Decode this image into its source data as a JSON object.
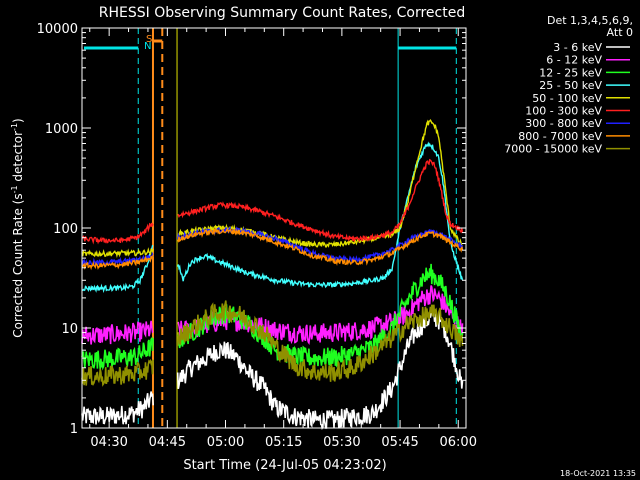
{
  "chart_data": {
    "type": "line",
    "title": "RHESSI Observing Summary Count Rates, Corrected",
    "xlabel": "Start Time (24-Jul-05 04:23:02)",
    "ylabel_main": "Corrected Count Rate (s",
    "ylabel_sup1": "-1",
    "ylabel_mid": " detector",
    "ylabel_sup2": "-1",
    "ylabel_end": ")",
    "yscale": "log",
    "ylim": [
      1,
      10000
    ],
    "xlim_minutes": [
      0,
      99
    ],
    "x_ticks": [
      {
        "label": "04:30",
        "min": 7
      },
      {
        "label": "04:45",
        "min": 22
      },
      {
        "label": "05:00",
        "min": 37
      },
      {
        "label": "05:15",
        "min": 52
      },
      {
        "label": "05:30",
        "min": 67
      },
      {
        "label": "05:45",
        "min": 82
      },
      {
        "label": "06:00",
        "min": 97
      }
    ],
    "y_ticks": [
      {
        "label": "1",
        "v": 1
      },
      {
        "label": "10",
        "v": 10
      },
      {
        "label": "100",
        "v": 100
      },
      {
        "label": "1000",
        "v": 1000
      },
      {
        "label": "10000",
        "v": 10000
      }
    ],
    "legend": {
      "placement": "right",
      "header1": "Det 1,3,4,5,6,9,",
      "header2": "Att 0"
    },
    "gaps": [
      [
        18.5,
        24.5
      ]
    ],
    "series": [
      {
        "name": "3 - 6 keV",
        "color": "#ffffff",
        "points": [
          [
            0,
            1.3
          ],
          [
            6,
            1.3
          ],
          [
            10,
            1.35
          ],
          [
            13,
            1.4
          ],
          [
            16,
            1.6
          ],
          [
            18,
            2.0
          ],
          [
            25,
            3.0
          ],
          [
            28,
            4.0
          ],
          [
            32,
            5.0
          ],
          [
            35,
            6.0
          ],
          [
            37,
            6.0
          ],
          [
            40,
            5.0
          ],
          [
            43,
            3.5
          ],
          [
            47,
            2.5
          ],
          [
            50,
            1.6
          ],
          [
            55,
            1.3
          ],
          [
            60,
            1.2
          ],
          [
            65,
            1.2
          ],
          [
            70,
            1.3
          ],
          [
            75,
            1.4
          ],
          [
            80,
            2.5
          ],
          [
            82,
            4
          ],
          [
            84,
            6.5
          ],
          [
            86,
            9
          ],
          [
            88,
            11
          ],
          [
            90,
            13
          ],
          [
            92,
            12
          ],
          [
            94,
            9
          ],
          [
            96,
            5
          ],
          [
            98,
            2.5
          ]
        ]
      },
      {
        "name": "6 - 12 keV",
        "color": "#ff20ff",
        "points": [
          [
            0,
            8.5
          ],
          [
            6,
            8.5
          ],
          [
            10,
            8.8
          ],
          [
            14,
            9.0
          ],
          [
            18,
            9.6
          ],
          [
            25,
            9.4
          ],
          [
            30,
            10
          ],
          [
            35,
            11.5
          ],
          [
            38,
            12
          ],
          [
            42,
            11.5
          ],
          [
            46,
            10.5
          ],
          [
            50,
            9.5
          ],
          [
            55,
            9.0
          ],
          [
            60,
            8.8
          ],
          [
            65,
            9.0
          ],
          [
            70,
            9.3
          ],
          [
            75,
            10
          ],
          [
            80,
            11.5
          ],
          [
            84,
            14
          ],
          [
            86,
            17
          ],
          [
            88,
            20
          ],
          [
            90,
            22
          ],
          [
            92,
            20
          ],
          [
            94,
            16
          ],
          [
            96,
            12
          ],
          [
            98,
            9.5
          ]
        ]
      },
      {
        "name": "12 - 25 keV",
        "color": "#20ff20",
        "points": [
          [
            0,
            4.8
          ],
          [
            6,
            4.9
          ],
          [
            10,
            5.0
          ],
          [
            14,
            5.2
          ],
          [
            18,
            6.5
          ],
          [
            25,
            7.5
          ],
          [
            30,
            10
          ],
          [
            34,
            13
          ],
          [
            37,
            14
          ],
          [
            40,
            13
          ],
          [
            43,
            11
          ],
          [
            47,
            8
          ],
          [
            50,
            6
          ],
          [
            55,
            5.2
          ],
          [
            60,
            5.0
          ],
          [
            65,
            5.1
          ],
          [
            70,
            5.5
          ],
          [
            75,
            6.5
          ],
          [
            80,
            10
          ],
          [
            82,
            14
          ],
          [
            84,
            19
          ],
          [
            86,
            25
          ],
          [
            88,
            32
          ],
          [
            90,
            35
          ],
          [
            92,
            30
          ],
          [
            94,
            22
          ],
          [
            96,
            14
          ],
          [
            98,
            8
          ]
        ]
      },
      {
        "name": "25 - 50 keV",
        "color": "#40ffff",
        "points": [
          [
            0,
            25
          ],
          [
            5,
            25
          ],
          [
            10,
            25
          ],
          [
            13,
            26
          ],
          [
            15,
            30
          ],
          [
            17,
            45
          ],
          [
            18,
            65
          ],
          [
            25,
            42
          ],
          [
            26,
            30
          ],
          [
            28,
            45
          ],
          [
            30,
            50
          ],
          [
            32,
            52
          ],
          [
            34,
            48
          ],
          [
            38,
            42
          ],
          [
            42,
            36
          ],
          [
            46,
            33
          ],
          [
            50,
            30
          ],
          [
            55,
            28
          ],
          [
            60,
            27
          ],
          [
            65,
            27
          ],
          [
            70,
            28
          ],
          [
            75,
            30
          ],
          [
            78,
            32
          ],
          [
            80,
            40
          ],
          [
            82,
            100
          ],
          [
            84,
            200
          ],
          [
            86,
            400
          ],
          [
            88,
            600
          ],
          [
            89,
            700
          ],
          [
            90,
            680
          ],
          [
            91,
            600
          ],
          [
            92,
            500
          ],
          [
            93,
            300
          ],
          [
            94,
            150
          ],
          [
            95,
            70
          ],
          [
            97,
            40
          ],
          [
            98,
            30
          ]
        ]
      },
      {
        "name": "50 - 100 keV",
        "color": "#e0e000",
        "points": [
          [
            0,
            55
          ],
          [
            5,
            55
          ],
          [
            10,
            56
          ],
          [
            14,
            56
          ],
          [
            18,
            58
          ],
          [
            25,
            88
          ],
          [
            30,
            95
          ],
          [
            35,
            100
          ],
          [
            40,
            98
          ],
          [
            45,
            90
          ],
          [
            50,
            80
          ],
          [
            55,
            72
          ],
          [
            60,
            68
          ],
          [
            65,
            68
          ],
          [
            70,
            72
          ],
          [
            75,
            78
          ],
          [
            80,
            85
          ],
          [
            82,
            100
          ],
          [
            84,
            180
          ],
          [
            86,
            400
          ],
          [
            88,
            800
          ],
          [
            89,
            1100
          ],
          [
            90,
            1150
          ],
          [
            91,
            1050
          ],
          [
            92,
            800
          ],
          [
            93,
            400
          ],
          [
            94,
            200
          ],
          [
            95,
            100
          ],
          [
            97,
            75
          ],
          [
            98,
            68
          ]
        ]
      },
      {
        "name": "100 - 300 keV",
        "color": "#ff2020",
        "points": [
          [
            0,
            78
          ],
          [
            5,
            75
          ],
          [
            10,
            75
          ],
          [
            14,
            80
          ],
          [
            16,
            90
          ],
          [
            18,
            110
          ],
          [
            25,
            135
          ],
          [
            30,
            150
          ],
          [
            34,
            165
          ],
          [
            36,
            170
          ],
          [
            40,
            165
          ],
          [
            45,
            150
          ],
          [
            50,
            130
          ],
          [
            55,
            110
          ],
          [
            60,
            95
          ],
          [
            65,
            82
          ],
          [
            70,
            78
          ],
          [
            75,
            80
          ],
          [
            80,
            90
          ],
          [
            82,
            110
          ],
          [
            84,
            160
          ],
          [
            86,
            250
          ],
          [
            88,
            380
          ],
          [
            89,
            450
          ],
          [
            90,
            460
          ],
          [
            91,
            420
          ],
          [
            92,
            300
          ],
          [
            93,
            200
          ],
          [
            94,
            130
          ],
          [
            95,
            110
          ],
          [
            97,
            100
          ],
          [
            98,
            95
          ]
        ]
      },
      {
        "name": "300 - 800 keV",
        "color": "#2020ff",
        "points": [
          [
            0,
            45
          ],
          [
            5,
            45
          ],
          [
            10,
            46
          ],
          [
            14,
            48
          ],
          [
            18,
            52
          ],
          [
            25,
            82
          ],
          [
            30,
            90
          ],
          [
            35,
            95
          ],
          [
            40,
            95
          ],
          [
            45,
            88
          ],
          [
            50,
            78
          ],
          [
            55,
            66
          ],
          [
            60,
            55
          ],
          [
            65,
            50
          ],
          [
            70,
            48
          ],
          [
            75,
            52
          ],
          [
            80,
            60
          ],
          [
            84,
            75
          ],
          [
            88,
            88
          ],
          [
            90,
            92
          ],
          [
            92,
            88
          ],
          [
            94,
            80
          ],
          [
            96,
            72
          ],
          [
            98,
            65
          ]
        ]
      },
      {
        "name": "800 - 7000 keV",
        "color": "#ff8c00",
        "points": [
          [
            0,
            42
          ],
          [
            5,
            42
          ],
          [
            10,
            43
          ],
          [
            14,
            45
          ],
          [
            18,
            50
          ],
          [
            25,
            78
          ],
          [
            30,
            88
          ],
          [
            35,
            93
          ],
          [
            40,
            92
          ],
          [
            45,
            84
          ],
          [
            50,
            72
          ],
          [
            55,
            62
          ],
          [
            60,
            52
          ],
          [
            65,
            47
          ],
          [
            70,
            45
          ],
          [
            75,
            48
          ],
          [
            80,
            56
          ],
          [
            84,
            70
          ],
          [
            88,
            85
          ],
          [
            90,
            88
          ],
          [
            92,
            84
          ],
          [
            94,
            76
          ],
          [
            96,
            68
          ],
          [
            98,
            62
          ]
        ]
      },
      {
        "name": "7000 - 15000 keV",
        "color": "#909000",
        "points": [
          [
            0,
            3.3
          ],
          [
            6,
            3.3
          ],
          [
            10,
            3.4
          ],
          [
            14,
            3.5
          ],
          [
            18,
            4.0
          ],
          [
            25,
            8
          ],
          [
            30,
            11
          ],
          [
            34,
            14
          ],
          [
            37,
            15
          ],
          [
            40,
            14
          ],
          [
            43,
            12
          ],
          [
            47,
            9
          ],
          [
            50,
            6.5
          ],
          [
            55,
            4.2
          ],
          [
            60,
            3.6
          ],
          [
            65,
            3.6
          ],
          [
            70,
            4.0
          ],
          [
            75,
            5.5
          ],
          [
            80,
            8
          ],
          [
            84,
            11
          ],
          [
            88,
            13
          ],
          [
            90,
            14
          ],
          [
            92,
            13
          ],
          [
            94,
            11
          ],
          [
            96,
            9
          ],
          [
            98,
            7
          ]
        ]
      }
    ],
    "overlays": {
      "night_label": "N",
      "saa_label": "S",
      "night_color": "#00e5e5",
      "saa_color": "#ff8c1a"
    },
    "timestamp": "18-Oct-2021 13:35"
  }
}
